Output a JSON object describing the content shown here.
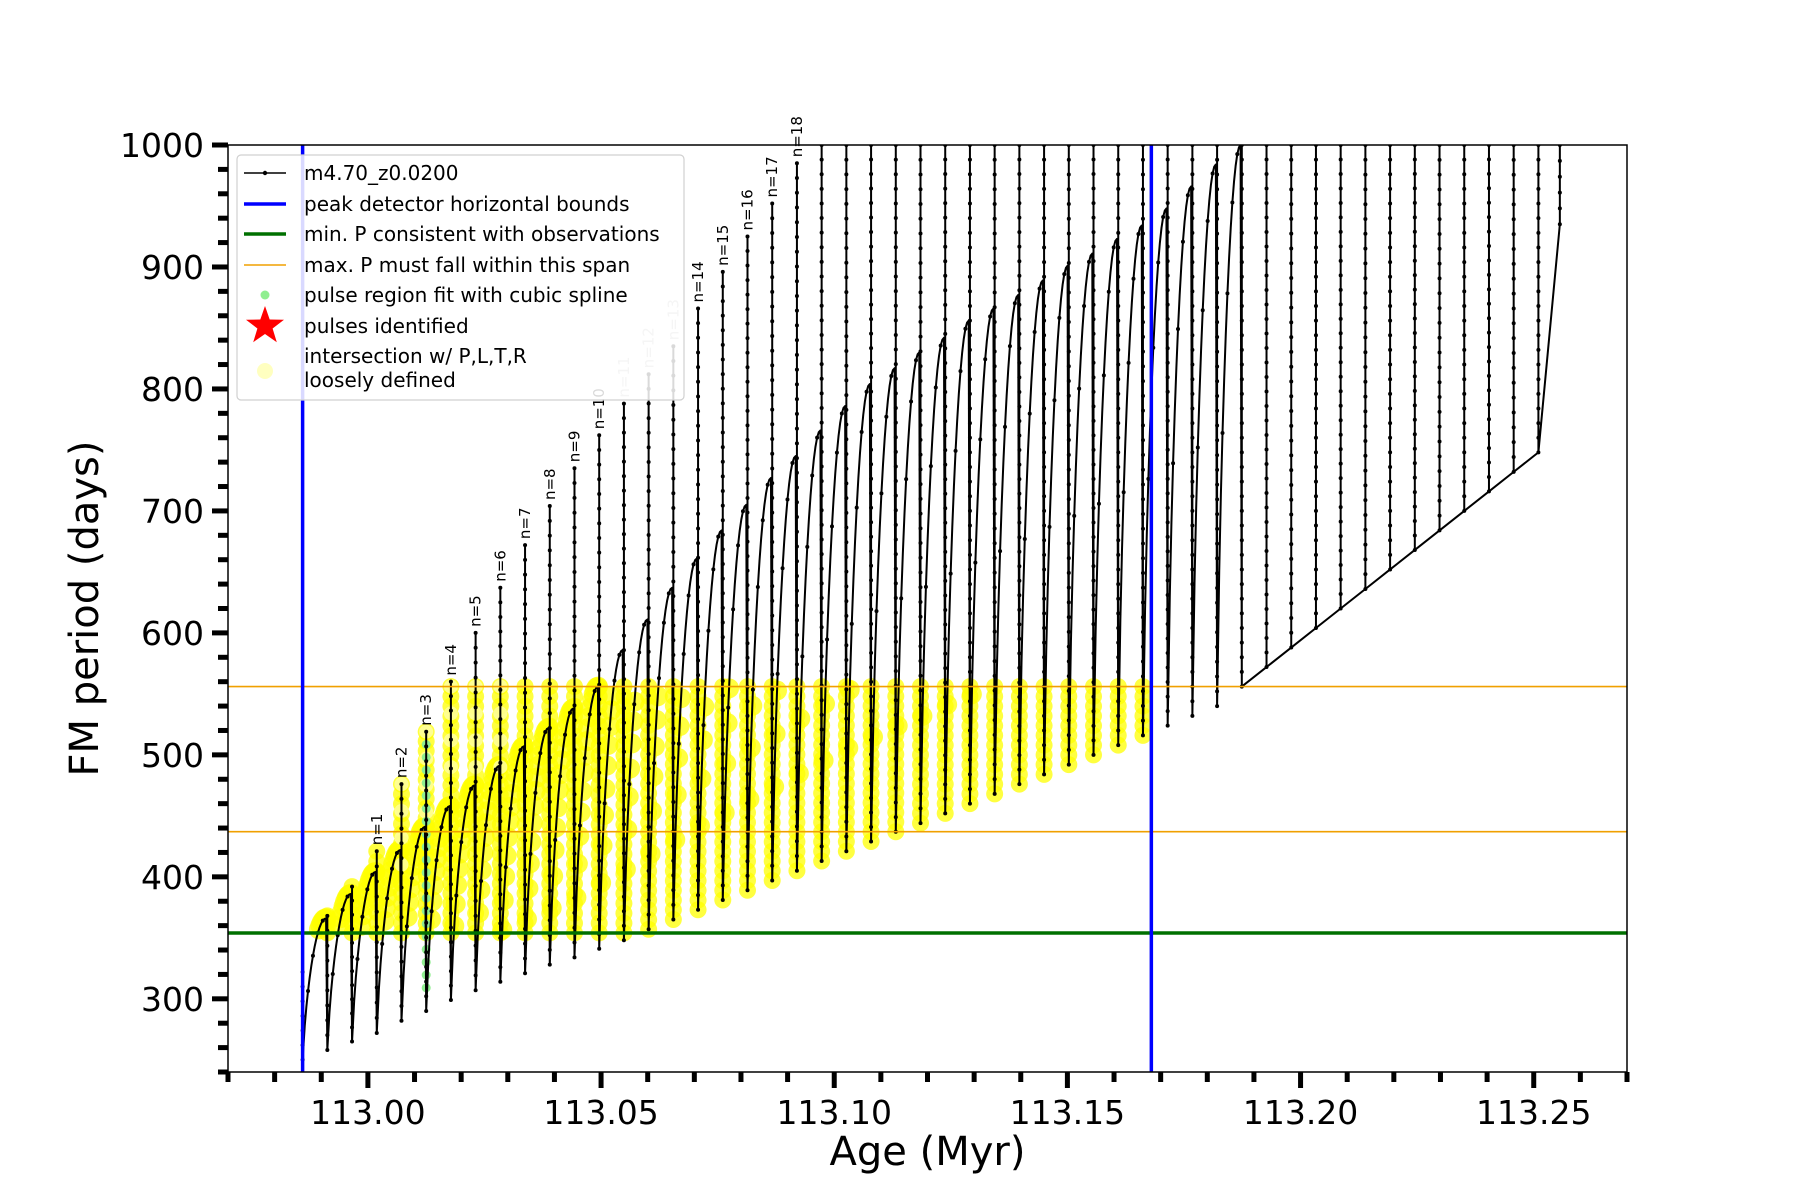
{
  "chart_data": {
    "type": "line",
    "title": "",
    "xlabel": "Age (Myr)",
    "ylabel": "FM period (days)",
    "xlim": [
      112.97,
      113.27
    ],
    "ylim": [
      240,
      1000
    ],
    "x_ticks": [
      113.0,
      113.05,
      113.1,
      113.15,
      113.2,
      113.25
    ],
    "x_tick_labels": [
      "113.00",
      "113.05",
      "113.10",
      "113.15",
      "113.20",
      "113.25"
    ],
    "y_ticks": [
      300,
      400,
      500,
      600,
      700,
      800,
      900,
      1000
    ],
    "y_tick_labels": [
      "300",
      "400",
      "500",
      "600",
      "700",
      "800",
      "900",
      "1000"
    ],
    "grid": false,
    "legend_position": "top-left",
    "legend": [
      {
        "label": "m4.70_z0.0200",
        "marker": "line-dot",
        "color": "#000000"
      },
      {
        "label": "peak detector horizontal bounds",
        "marker": "line",
        "color": "#0000ff"
      },
      {
        "label": "min. P consistent with observations",
        "marker": "line",
        "color": "#007000"
      },
      {
        "label": "max. P must fall within this span",
        "marker": "thin-line",
        "color": "#f0a000"
      },
      {
        "label": "pulse region fit with cubic spline",
        "marker": "dot",
        "color": "#90ee90"
      },
      {
        "label": "pulses identified",
        "marker": "star",
        "color": "#ff0000"
      },
      {
        "label": "intersection w/ P,L,T,R",
        "marker": "circle",
        "color": "#ffffc0"
      },
      {
        "label": "loosely defined",
        "marker": "none",
        "color": ""
      }
    ],
    "vertical_bounds": [
      112.986,
      113.168
    ],
    "min_period": 354,
    "max_period_span": [
      437,
      556
    ],
    "series": {
      "name": "m4.70_z0.0200",
      "color": "#000000",
      "pulse_ages": [
        112.986,
        112.9913,
        112.9966,
        113.0019,
        113.0072,
        113.0125,
        113.0178,
        113.0231,
        113.0284,
        113.0337,
        113.039,
        113.0443,
        113.0496,
        113.0549,
        113.0602,
        113.0655,
        113.0708,
        113.0761,
        113.0814,
        113.0867,
        113.092,
        113.0973,
        113.1026,
        113.1079,
        113.1132,
        113.1185,
        113.1238,
        113.1291,
        113.1344,
        113.1397,
        113.145,
        113.1503,
        113.1556,
        113.1609,
        113.1662,
        113.1715,
        113.1768,
        113.1821,
        113.1874,
        113.1927,
        113.198,
        113.2033,
        113.2086,
        113.2139,
        113.2192,
        113.2245,
        113.2298,
        113.2351,
        113.2404,
        113.2457,
        113.251,
        113.2556
      ],
      "pulse_peaks": [
        322,
        368,
        392,
        421,
        476,
        519,
        560,
        600,
        637,
        672,
        704,
        735,
        762,
        788,
        812,
        835,
        866,
        896,
        925,
        952,
        985,
        1000,
        1000,
        1000,
        1000,
        1000,
        1000,
        1000,
        1000,
        1000,
        1000,
        1000,
        1000,
        1000,
        1000,
        1000,
        1000,
        1000,
        1000,
        1000,
        1000,
        1000,
        1000,
        1000,
        1000,
        1000,
        1000,
        1000,
        1000,
        1000,
        1000,
        1000
      ],
      "pulse_troughs": [
        250,
        258,
        265,
        272,
        282,
        290,
        299,
        307,
        314,
        321,
        328,
        334,
        341,
        348,
        357,
        365,
        373,
        381,
        389,
        397,
        405,
        413,
        421,
        429,
        437,
        444,
        452,
        460,
        468,
        476,
        484,
        492,
        500,
        508,
        516,
        524,
        532,
        540,
        556,
        572,
        588,
        604,
        620,
        636,
        652,
        668,
        684,
        700,
        716,
        732,
        748,
        935
      ],
      "envelope_peaks": [
        366,
        386,
        404,
        422,
        441,
        458,
        475,
        491,
        507,
        522,
        538,
        556,
        586,
        611,
        637,
        661,
        684,
        705,
        727,
        745,
        766,
        786,
        804,
        817,
        830,
        842,
        856,
        866,
        877,
        889,
        901,
        911,
        923,
        934,
        948,
        966,
        984,
        1000
      ]
    },
    "pulse_labels": [
      {
        "text": "n=1",
        "age": 113.0019,
        "faded": false
      },
      {
        "text": "n=2",
        "age": 113.0072,
        "faded": false
      },
      {
        "text": "n=3",
        "age": 113.0125,
        "faded": false
      },
      {
        "text": "n=4",
        "age": 113.0178,
        "faded": false
      },
      {
        "text": "n=5",
        "age": 113.0231,
        "faded": false
      },
      {
        "text": "n=6",
        "age": 113.0284,
        "faded": false
      },
      {
        "text": "n=7",
        "age": 113.0337,
        "faded": false
      },
      {
        "text": "n=8",
        "age": 113.039,
        "faded": false
      },
      {
        "text": "n=9",
        "age": 113.0443,
        "faded": false
      },
      {
        "text": "n=10",
        "age": 113.0496,
        "faded": false
      },
      {
        "text": "n=11",
        "age": 113.0549,
        "faded": true
      },
      {
        "text": "n=12",
        "age": 113.0602,
        "faded": true
      },
      {
        "text": "n=13",
        "age": 113.0655,
        "faded": true
      },
      {
        "text": "n=14",
        "age": 113.0708,
        "faded": false
      },
      {
        "text": "n=15",
        "age": 113.0761,
        "faded": false
      },
      {
        "text": "n=16",
        "age": 113.0814,
        "faded": false
      },
      {
        "text": "n=17",
        "age": 113.0867,
        "faded": false
      },
      {
        "text": "n=18",
        "age": 113.092,
        "faded": false
      }
    ],
    "colors": {
      "track": "#000000",
      "bounds": "#0000ff",
      "min_period": "#007000",
      "max_period": "#f0a000",
      "spline": "#90ee90",
      "intersection": "#ffff00",
      "intersection_light": "#ffffa8"
    }
  }
}
